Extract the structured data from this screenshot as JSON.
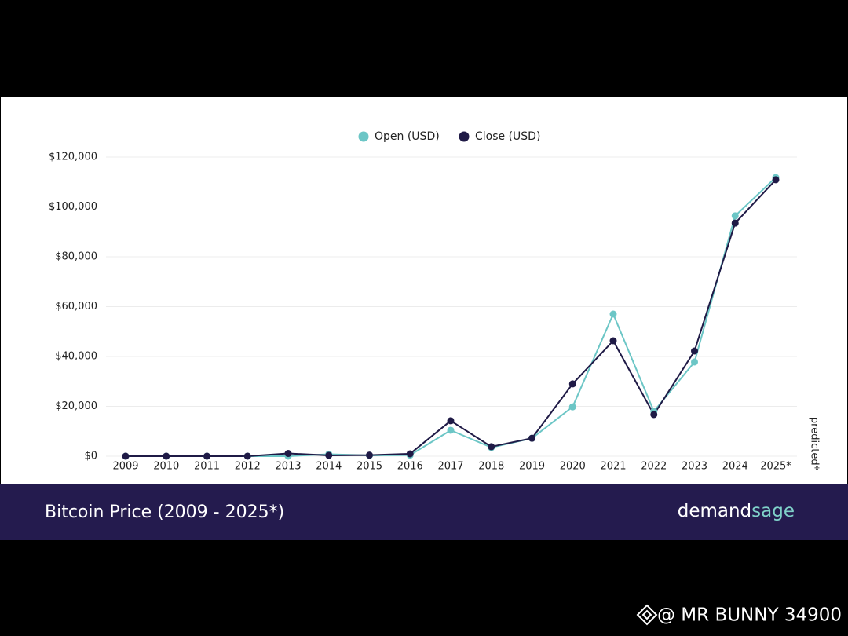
{
  "chart_data": {
    "type": "line",
    "title": "Bitcoin Price (2009 - 2025*)",
    "logo": [
      "demand",
      "sage"
    ],
    "annotation": "predicted*",
    "watermark": "@ MR BUNNY 34900",
    "legend": "top",
    "grid": true,
    "categories": [
      "2009",
      "2010",
      "2011",
      "2012",
      "2013",
      "2014",
      "2015",
      "2016",
      "2017",
      "2018",
      "2019",
      "2020",
      "2021",
      "2022",
      "2023",
      "2024",
      "2025*"
    ],
    "series": [
      {
        "name": "Open (USD)",
        "color": "#6cc6c6",
        "values": [
          0,
          0,
          0,
          5,
          13,
          800,
          300,
          430,
          10400,
          3500,
          7200,
          19800,
          57000,
          18000,
          37800,
          96400,
          111800
        ]
      },
      {
        "name": "Close (USD)",
        "color": "#1f1a46",
        "values": [
          0,
          0,
          0,
          13,
          1100,
          320,
          430,
          960,
          14200,
          3800,
          7200,
          29000,
          46300,
          16700,
          42200,
          93500,
          110900
        ]
      }
    ],
    "ylim": [
      0,
      120000
    ],
    "yticks": [
      {
        "value": 0,
        "label": "$0"
      },
      {
        "value": 20000,
        "label": "$20,000"
      },
      {
        "value": 40000,
        "label": "$40,000"
      },
      {
        "value": 60000,
        "label": "$60,000"
      },
      {
        "value": 80000,
        "label": "$80,000"
      },
      {
        "value": 100000,
        "label": "$100,000"
      },
      {
        "value": 120000,
        "label": "$120,000"
      }
    ]
  }
}
